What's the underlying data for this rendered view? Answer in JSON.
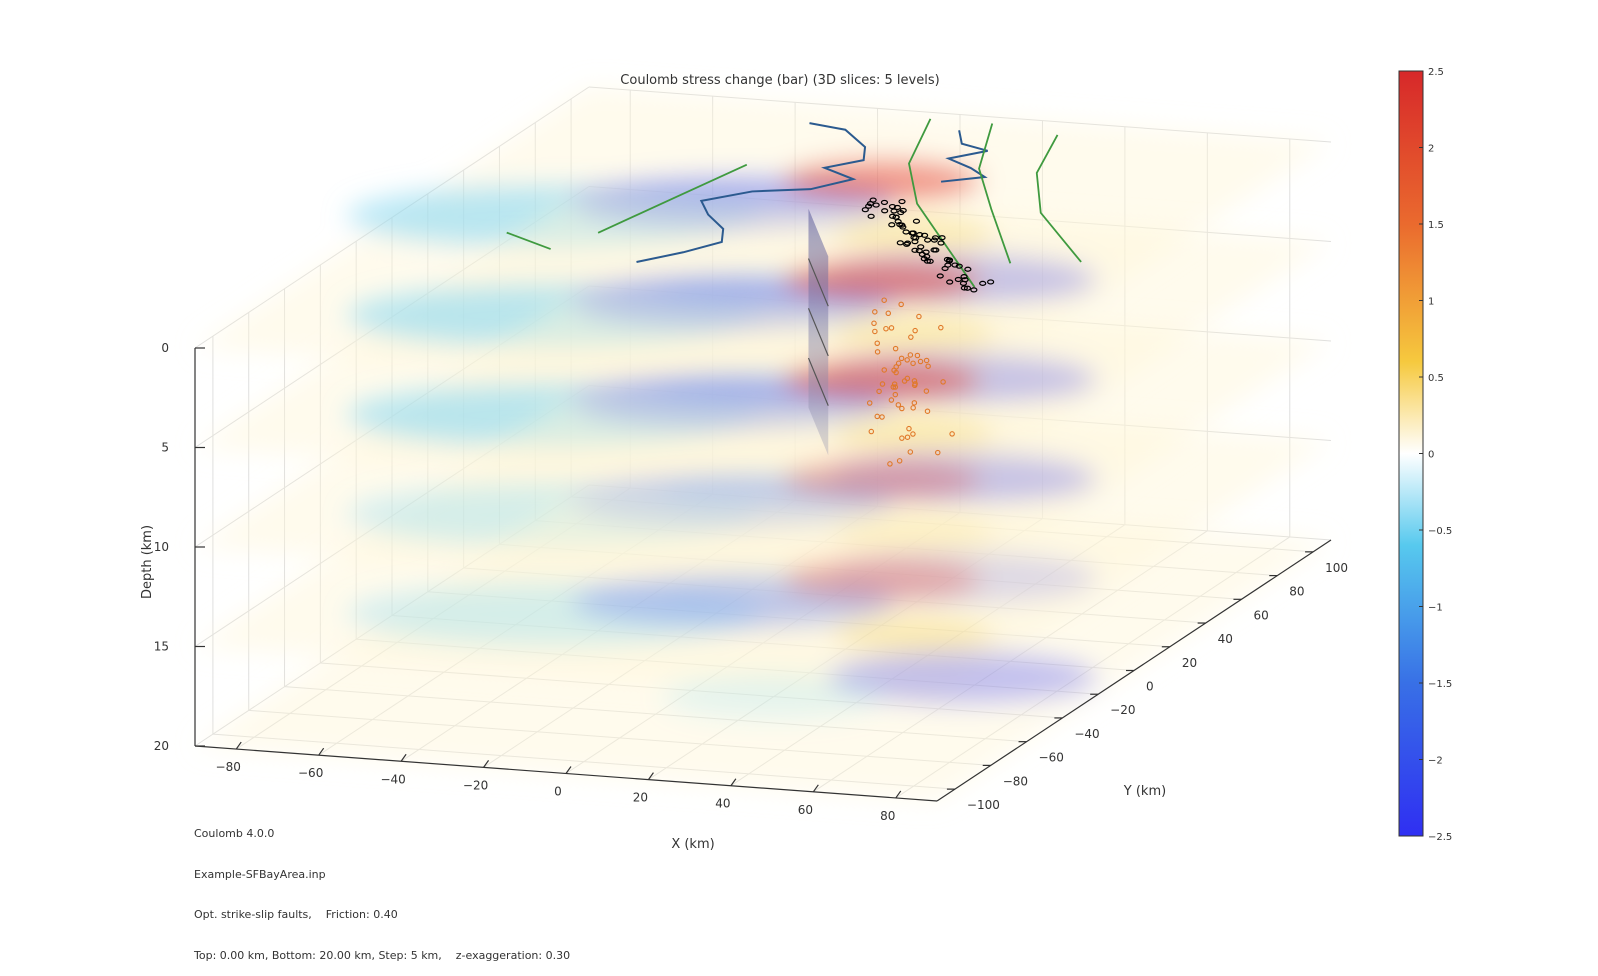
{
  "chart_data": {
    "type": "heatmap",
    "title": "Coulomb stress change (bar) (3D slices: 5 levels)",
    "xlabel": "X (km)",
    "ylabel": "Y (km)",
    "zlabel": "Depth (km)",
    "x_ticks": [
      -80,
      -60,
      -40,
      -20,
      0,
      20,
      40,
      60,
      80
    ],
    "y_ticks": [
      -100,
      -80,
      -60,
      -40,
      -20,
      0,
      20,
      40,
      60,
      80,
      100
    ],
    "z_ticks": [
      0,
      5,
      10,
      15,
      20
    ],
    "xlim": [
      -90,
      90
    ],
    "ylim": [
      -110,
      110
    ],
    "zlim": [
      0,
      20
    ],
    "slice_depths_km": [
      0,
      5,
      10,
      15,
      20
    ],
    "colorbar": {
      "min": -2.5,
      "max": 2.5,
      "ticks": [
        "2.5",
        "2",
        "1.5",
        "1",
        "0.5",
        "0",
        "−0.5",
        "−1",
        "−1.5",
        "−2",
        "−2.5"
      ]
    },
    "grid": true,
    "colors": {
      "positive": "#e03a32",
      "negative": "#3a3af0",
      "coast": "#2b5a8f",
      "faults": "#3f9a3f",
      "quake_shallow": "#000000",
      "quake_deep": "#e07828"
    }
  },
  "info": {
    "line1": "Coulomb 4.0.0",
    "line2": "Example-SFBayArea.inp",
    "line3": "Opt. strike-slip faults,    Friction: 0.40",
    "line4": "Top: 0.00 km, Bottom: 20.00 km, Step: 5 km,    z-exaggeration: 0.30"
  }
}
